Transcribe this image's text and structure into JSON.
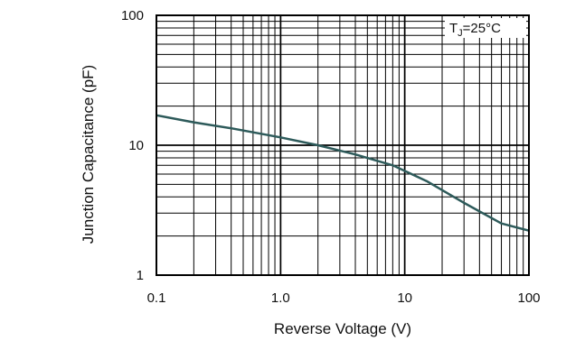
{
  "chart_data": {
    "type": "line",
    "title": "",
    "xlabel": "Reverse Voltage (V)",
    "ylabel": "Junction Capacitance (pF)",
    "x_scale": "log",
    "y_scale": "log",
    "xlim": [
      0.1,
      100
    ],
    "ylim": [
      1,
      100
    ],
    "grid": true,
    "x_ticks": [
      {
        "value": 0.1,
        "label": "0.1"
      },
      {
        "value": 1,
        "label": "1.0"
      },
      {
        "value": 10,
        "label": "10"
      },
      {
        "value": 100,
        "label": "100"
      }
    ],
    "y_ticks": [
      {
        "value": 1,
        "label": "1"
      },
      {
        "value": 10,
        "label": "10"
      },
      {
        "value": 100,
        "label": "100"
      }
    ],
    "annotation": {
      "text_main": "T",
      "text_sub": "J",
      "text_rest": "=25°C",
      "placement": "top-right"
    },
    "series": [
      {
        "color": "#2d5a5a",
        "points": [
          {
            "x": 0.1,
            "y": 17
          },
          {
            "x": 0.2,
            "y": 15
          },
          {
            "x": 0.4,
            "y": 13.5
          },
          {
            "x": 1,
            "y": 11.5
          },
          {
            "x": 2,
            "y": 10
          },
          {
            "x": 4,
            "y": 8.5
          },
          {
            "x": 8,
            "y": 7
          },
          {
            "x": 15,
            "y": 5.3
          },
          {
            "x": 30,
            "y": 3.6
          },
          {
            "x": 60,
            "y": 2.5
          },
          {
            "x": 100,
            "y": 2.2
          }
        ]
      }
    ]
  }
}
